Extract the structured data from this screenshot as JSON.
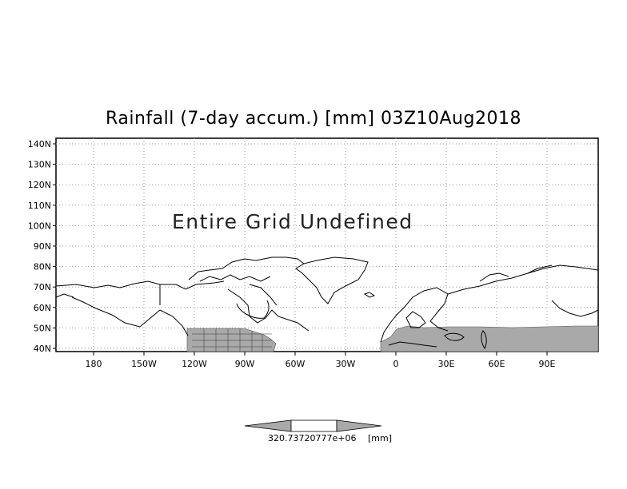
{
  "map": {
    "title": "Rainfall (7-day accum.) [mm] 03Z10Aug2018",
    "message": "Entire Grid Undefined",
    "lat_labels": [
      "140N",
      "130N",
      "120N",
      "110N",
      "100N",
      "90N",
      "80N",
      "70N",
      "60N",
      "50N",
      "40N"
    ],
    "lon_labels": [
      "180",
      "150W",
      "120W",
      "90W",
      "60W",
      "30W",
      "0",
      "30E",
      "60E",
      "90E"
    ],
    "colors": {
      "land_shade": "#a9a9a9",
      "coast": "#000000",
      "grid": "#9a9a9a",
      "frame": "#000000"
    }
  },
  "colorbar": {
    "labels_text": "320.73720777e+06",
    "units": "[mm]",
    "fill_arrows": "#a9a9a9",
    "fill_center": "#ffffff"
  }
}
